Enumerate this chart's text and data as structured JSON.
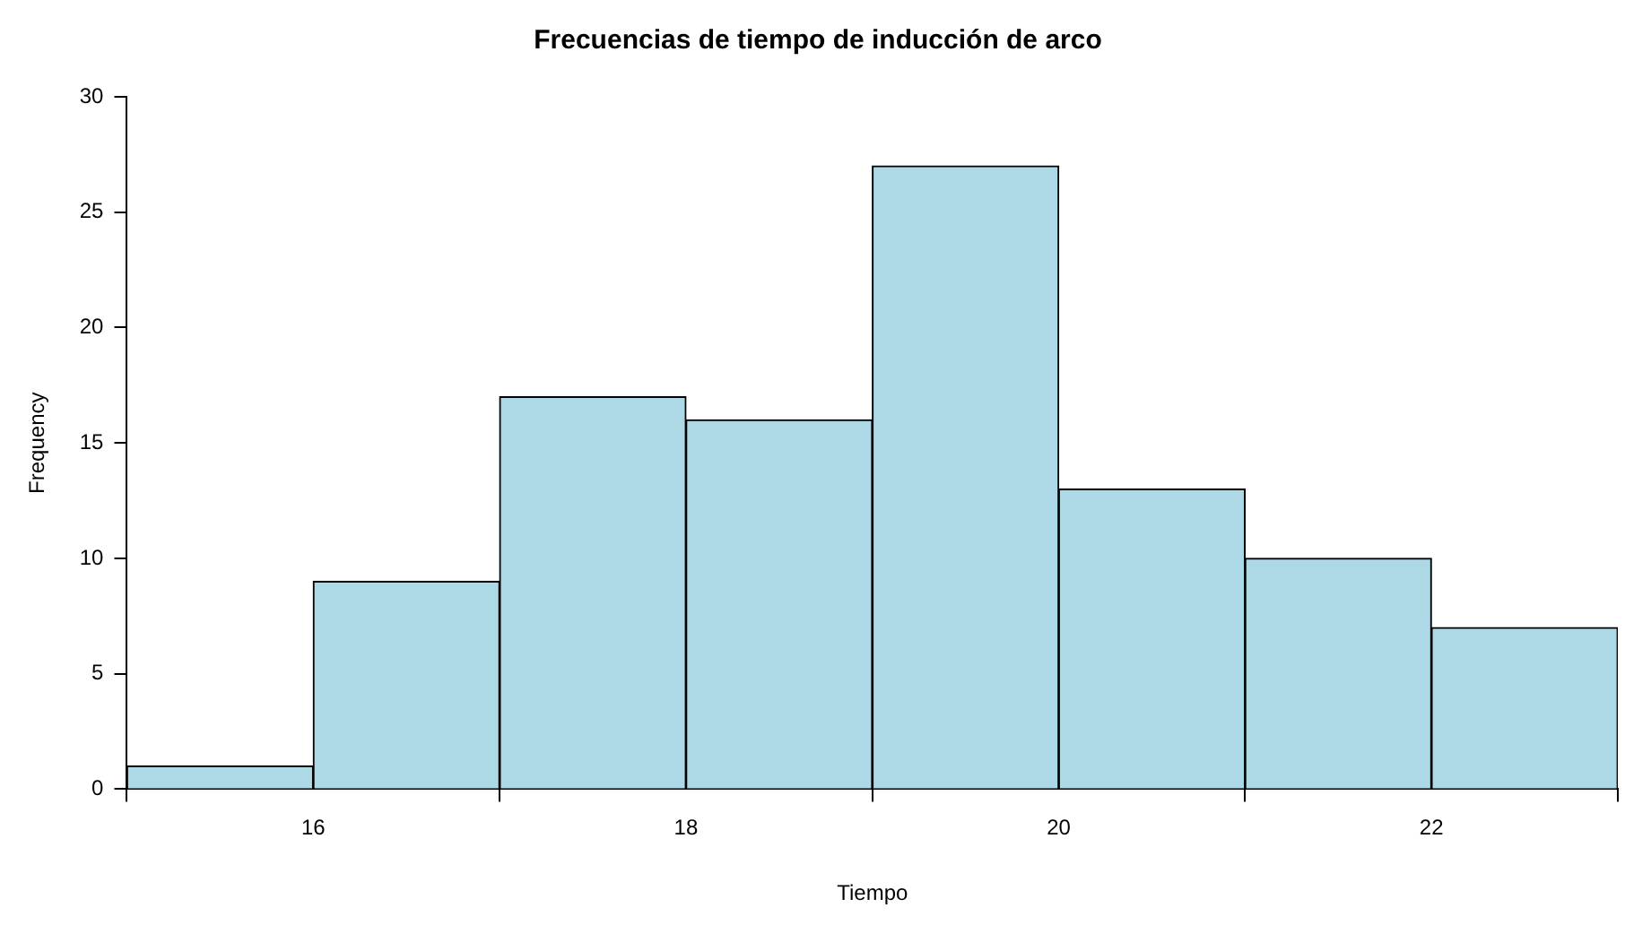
{
  "chart_data": {
    "type": "histogram",
    "title": "Frecuencias de tiempo de inducción de arco",
    "xlabel": "Tiempo",
    "ylabel": "Frequency",
    "bins": [
      15,
      16,
      17,
      18,
      19,
      20,
      21,
      22,
      23
    ],
    "values": [
      1,
      9,
      17,
      16,
      27,
      13,
      10,
      7
    ],
    "color": "#add8e6",
    "xlim": [
      15,
      23
    ],
    "xticks": [
      16,
      18,
      20,
      22
    ],
    "ylim": [
      0,
      30
    ],
    "yticks": [
      0,
      5,
      10,
      15,
      20,
      25,
      30
    ],
    "grid": false,
    "legend": false
  }
}
